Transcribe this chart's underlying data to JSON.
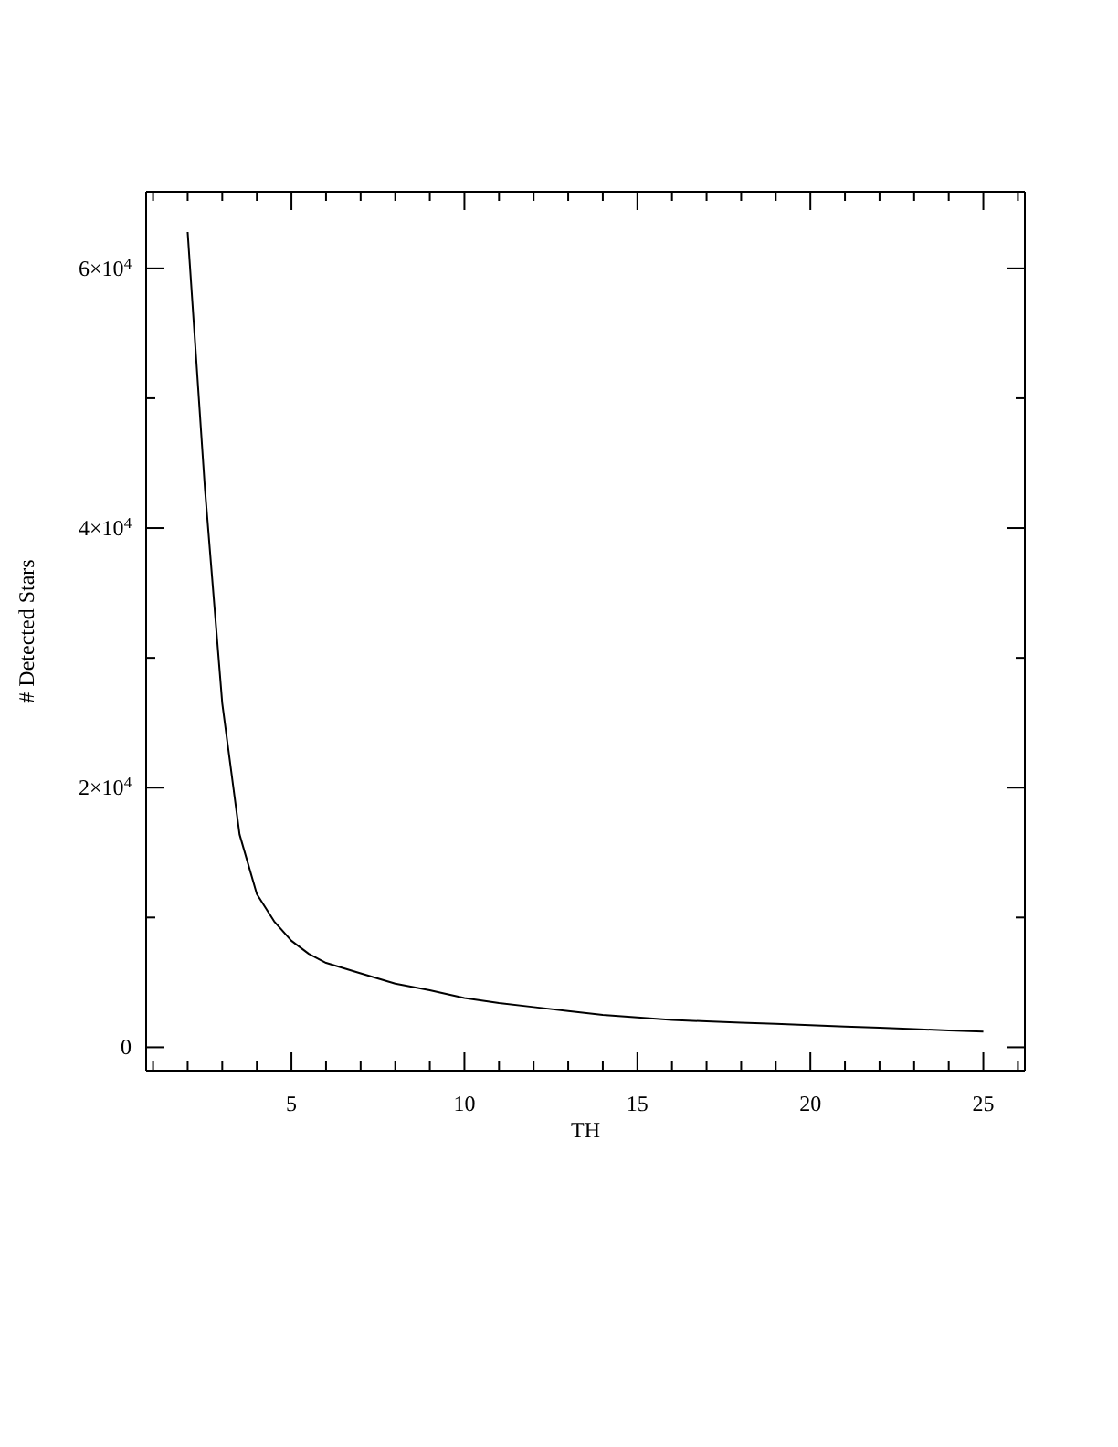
{
  "chart_data": {
    "type": "line",
    "xlabel": "TH",
    "ylabel": "# Detected Stars",
    "x": [
      2,
      2.5,
      3,
      3.5,
      4,
      4.5,
      5,
      5.5,
      6,
      7,
      8,
      9,
      10,
      11,
      12,
      13,
      14,
      15,
      16,
      17,
      18,
      19,
      20,
      21,
      22,
      23,
      24,
      25
    ],
    "series": [
      {
        "color": "#000000",
        "values": [
          62800,
          43000,
          26500,
          16400,
          11800,
          9700,
          8200,
          7200,
          6500,
          5700,
          4900,
          4400,
          3800,
          3400,
          3100,
          2800,
          2500,
          2300,
          2100,
          2000,
          1900,
          1800,
          1700,
          1600,
          1500,
          1400,
          1300,
          1200
        ]
      }
    ],
    "xlim": [
      0.8,
      26.2
    ],
    "ylim": [
      -1800,
      65900
    ],
    "xticks": [
      {
        "value": 1,
        "label": null
      },
      {
        "value": 2,
        "label": null
      },
      {
        "value": 3,
        "label": null
      },
      {
        "value": 4,
        "label": null
      },
      5,
      {
        "value": 6,
        "label": null
      },
      {
        "value": 7,
        "label": null
      },
      {
        "value": 8,
        "label": null
      },
      {
        "value": 9,
        "label": null
      },
      10,
      {
        "value": 11,
        "label": null
      },
      {
        "value": 12,
        "label": null
      },
      {
        "value": 13,
        "label": null
      },
      {
        "value": 14,
        "label": null
      },
      15,
      {
        "value": 16,
        "label": null
      },
      {
        "value": 17,
        "label": null
      },
      {
        "value": 18,
        "label": null
      },
      {
        "value": 19,
        "label": null
      },
      20,
      {
        "value": 21,
        "label": null
      },
      {
        "value": 22,
        "label": null
      },
      {
        "value": 23,
        "label": null
      },
      {
        "value": 24,
        "label": null
      },
      25,
      {
        "value": 26,
        "label": null
      }
    ],
    "yticks": [
      0,
      {
        "value": 10000,
        "label": null
      },
      {
        "value": 20000,
        "label": "2×10$^{4}$"
      },
      {
        "value": 30000,
        "label": null
      },
      {
        "value": 40000,
        "label": "4×10$^{4}$"
      },
      {
        "value": 50000,
        "label": null
      },
      {
        "value": 60000,
        "label": "6×10$^{4}$"
      }
    ],
    "grid": false,
    "marker": "none",
    "line_style": "solid"
  }
}
